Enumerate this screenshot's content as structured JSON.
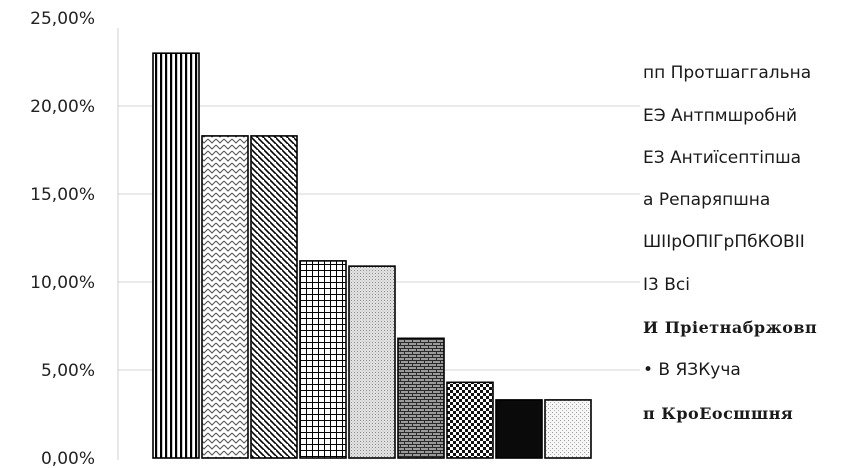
{
  "chart_data": {
    "type": "bar",
    "title": "",
    "xlabel": "",
    "ylabel": "",
    "ylim": [
      0,
      25
    ],
    "y_ticks": [
      "0,00%",
      "5,00%",
      "10,00%",
      "15,00%",
      "20,00%",
      "25,00%"
    ],
    "grid": true,
    "legend_position": "right",
    "categories": [
      "пп Протшаггальна",
      "ЕЭ Антпмшробнй",
      "ЕЗ Антиїсептіпша",
      "а Репаряпшна",
      "ШІІрОПІГрПбКОВІІ",
      "І3 Вcі",
      "И Пріетнабржовп",
      "• В ЯЗКуча",
      "п КроЕосшшня"
    ],
    "values": [
      23.0,
      18.3,
      18.3,
      11.2,
      10.9,
      6.8,
      4.3,
      3.3,
      3.3
    ],
    "patterns": [
      "vertical-lines",
      "zigzag",
      "diagonal-lines",
      "grid",
      "dots-fine",
      "brick",
      "checker",
      "solid-black",
      "dots-light"
    ]
  }
}
